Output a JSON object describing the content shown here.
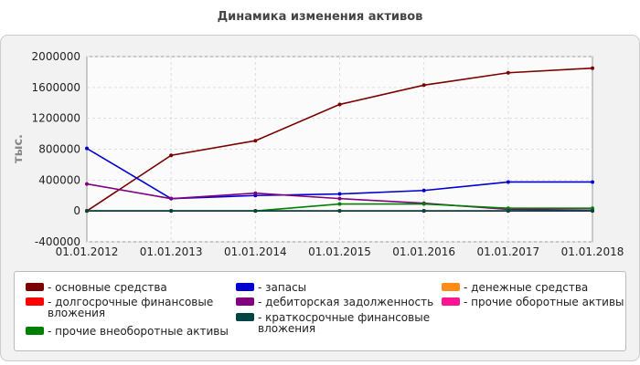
{
  "chart_data": {
    "type": "line",
    "title": "Динамика изменения активов",
    "y_label": "тыс.",
    "categories": [
      "01.01.2012",
      "01.01.2013",
      "01.01.2014",
      "01.01.2015",
      "01.01.2016",
      "01.01.2017",
      "01.01.2018"
    ],
    "ylim": [
      -400000,
      2000000
    ],
    "yticks": [
      -400000,
      0,
      400000,
      800000,
      1200000,
      1600000,
      2000000
    ],
    "grid": true,
    "series": [
      {
        "name": "- основные средства",
        "color": "#7a0000",
        "values": [
          0,
          720000,
          910000,
          1380000,
          1630000,
          1790000,
          1850000
        ]
      },
      {
        "name": "- запасы",
        "color": "#0000d0",
        "values": [
          810000,
          160000,
          200000,
          220000,
          265000,
          375000,
          375000
        ]
      },
      {
        "name": "- денежные средства",
        "color": "#ff8c1a",
        "values": [
          0,
          0,
          0,
          0,
          0,
          0,
          0
        ]
      },
      {
        "name": "- долгосрочные финансовые вложения",
        "color": "#ff0000",
        "values": [
          0,
          0,
          0,
          0,
          0,
          0,
          0
        ]
      },
      {
        "name": "- дебиторская задолженность",
        "color": "#800080",
        "values": [
          350000,
          160000,
          230000,
          160000,
          100000,
          20000,
          10000
        ]
      },
      {
        "name": "- прочие оборотные активы",
        "color": "#ff1493",
        "values": [
          0,
          0,
          0,
          0,
          0,
          0,
          0
        ]
      },
      {
        "name": "- прочие внеоборотные активы",
        "color": "#008000",
        "values": [
          0,
          0,
          0,
          90000,
          90000,
          35000,
          35000
        ]
      },
      {
        "name": "- краткосрочные финансовые вложения",
        "color": "#004444",
        "values": [
          0,
          0,
          0,
          0,
          0,
          0,
          0
        ]
      }
    ]
  }
}
